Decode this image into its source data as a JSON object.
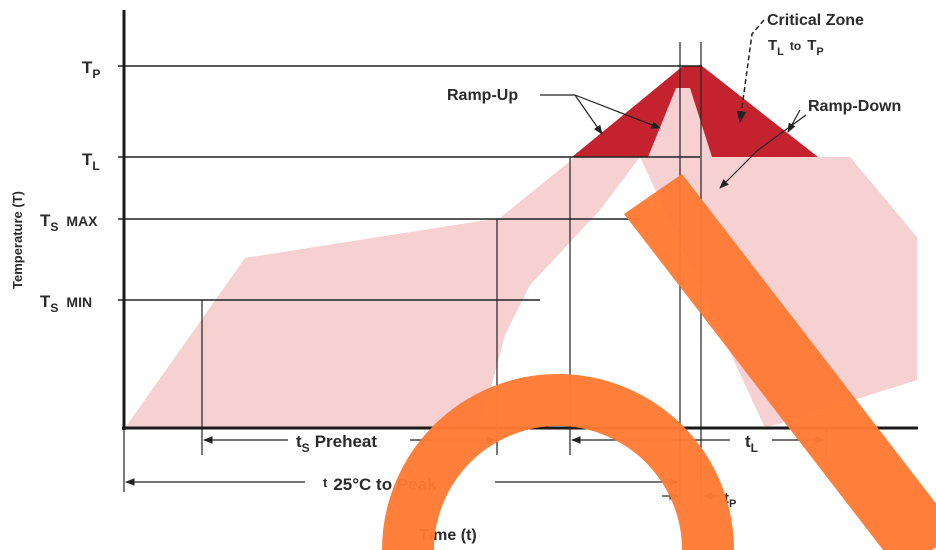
{
  "diagram": {
    "y_axis_label": "Temperature (T)",
    "x_axis_label": "Time (t)",
    "levels": {
      "tp": {
        "main": "T",
        "sub": "P"
      },
      "tl": {
        "main": "T",
        "sub": "L"
      },
      "ts_max": {
        "main": "T",
        "sub": "S",
        "suffix": "MAX"
      },
      "ts_min": {
        "main": "T",
        "sub": "S",
        "suffix": "MIN"
      }
    },
    "critical_zone": {
      "title": "Critical Zone",
      "range_main_1": "T",
      "range_sub_1": "L",
      "range_to": "to",
      "range_main_2": "T",
      "range_sub_2": "P"
    },
    "ramp_up": "Ramp-Up",
    "ramp_down": "Ramp-Down",
    "durations": {
      "preheat": {
        "main": "t",
        "sub": "S",
        "text": "Preheat"
      },
      "tl": {
        "main": "t",
        "sub": "L"
      },
      "to_peak": {
        "main": "t",
        "text": "25°C to Peak"
      },
      "tp": {
        "main": "t",
        "sub": "P"
      }
    },
    "colors": {
      "envelope": "#f7d0d2",
      "critical": "#c4222e",
      "watermark": "#ff7a33",
      "axis": "#1a1a1a"
    }
  }
}
